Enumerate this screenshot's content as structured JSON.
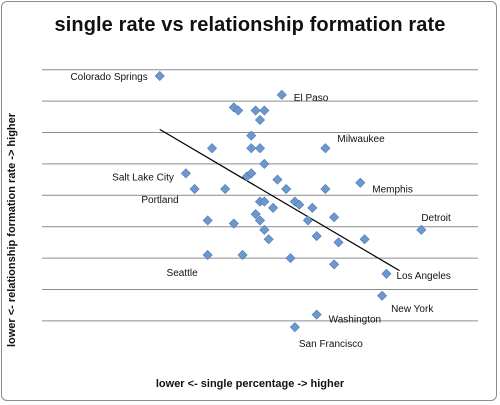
{
  "chart_data": {
    "type": "scatter",
    "title": "single rate vs relationship formation rate",
    "xlabel": "lower <- single percentage -> higher",
    "ylabel": "lower <- relationship formation rate -> higher",
    "grid": "horizontal",
    "colors": {
      "marker": "#6d97cf",
      "marker_edge": "#4f79b0",
      "gridline": "#8c8c8c",
      "trendline": "#000000",
      "text": "#111111"
    },
    "xlim": [
      0,
      100
    ],
    "ylim": [
      0,
      100
    ],
    "points": [
      {
        "x": 27,
        "y": 93,
        "label": "Colorado Springs"
      },
      {
        "x": 55,
        "y": 87,
        "label": "El Paso"
      },
      {
        "x": 65,
        "y": 70,
        "label": "Milwaukee"
      },
      {
        "x": 73,
        "y": 59,
        "label": "Memphis"
      },
      {
        "x": 87,
        "y": 44,
        "label": "Detroit"
      },
      {
        "x": 79,
        "y": 30,
        "label": "Los Angeles"
      },
      {
        "x": 78,
        "y": 23,
        "label": "New York"
      },
      {
        "x": 63,
        "y": 17,
        "label": "Washington"
      },
      {
        "x": 58,
        "y": 13,
        "label": "San Francisco"
      },
      {
        "x": 33,
        "y": 62,
        "label": "Salt Lake City"
      },
      {
        "x": 35,
        "y": 57,
        "label": "Portland"
      },
      {
        "x": 38,
        "y": 36,
        "label": "Seattle"
      },
      {
        "x": 44,
        "y": 83
      },
      {
        "x": 45,
        "y": 82
      },
      {
        "x": 49,
        "y": 82
      },
      {
        "x": 51,
        "y": 82
      },
      {
        "x": 50,
        "y": 79
      },
      {
        "x": 48,
        "y": 74
      },
      {
        "x": 39,
        "y": 70
      },
      {
        "x": 48,
        "y": 70
      },
      {
        "x": 50,
        "y": 70
      },
      {
        "x": 51,
        "y": 65
      },
      {
        "x": 47,
        "y": 61
      },
      {
        "x": 48,
        "y": 62
      },
      {
        "x": 54,
        "y": 60
      },
      {
        "x": 56,
        "y": 57
      },
      {
        "x": 42,
        "y": 57
      },
      {
        "x": 50,
        "y": 53
      },
      {
        "x": 51,
        "y": 53
      },
      {
        "x": 58,
        "y": 53
      },
      {
        "x": 59,
        "y": 52
      },
      {
        "x": 62,
        "y": 51
      },
      {
        "x": 65,
        "y": 57
      },
      {
        "x": 49,
        "y": 49
      },
      {
        "x": 53,
        "y": 51
      },
      {
        "x": 38,
        "y": 47
      },
      {
        "x": 44,
        "y": 46
      },
      {
        "x": 50,
        "y": 47
      },
      {
        "x": 61,
        "y": 47
      },
      {
        "x": 67,
        "y": 48
      },
      {
        "x": 51,
        "y": 44
      },
      {
        "x": 52,
        "y": 41
      },
      {
        "x": 63,
        "y": 42
      },
      {
        "x": 68,
        "y": 40
      },
      {
        "x": 74,
        "y": 41
      },
      {
        "x": 46,
        "y": 36
      },
      {
        "x": 57,
        "y": 35
      },
      {
        "x": 67,
        "y": 33
      }
    ],
    "trendline": {
      "x": [
        27,
        82
      ],
      "y": [
        76,
        31
      ]
    }
  }
}
